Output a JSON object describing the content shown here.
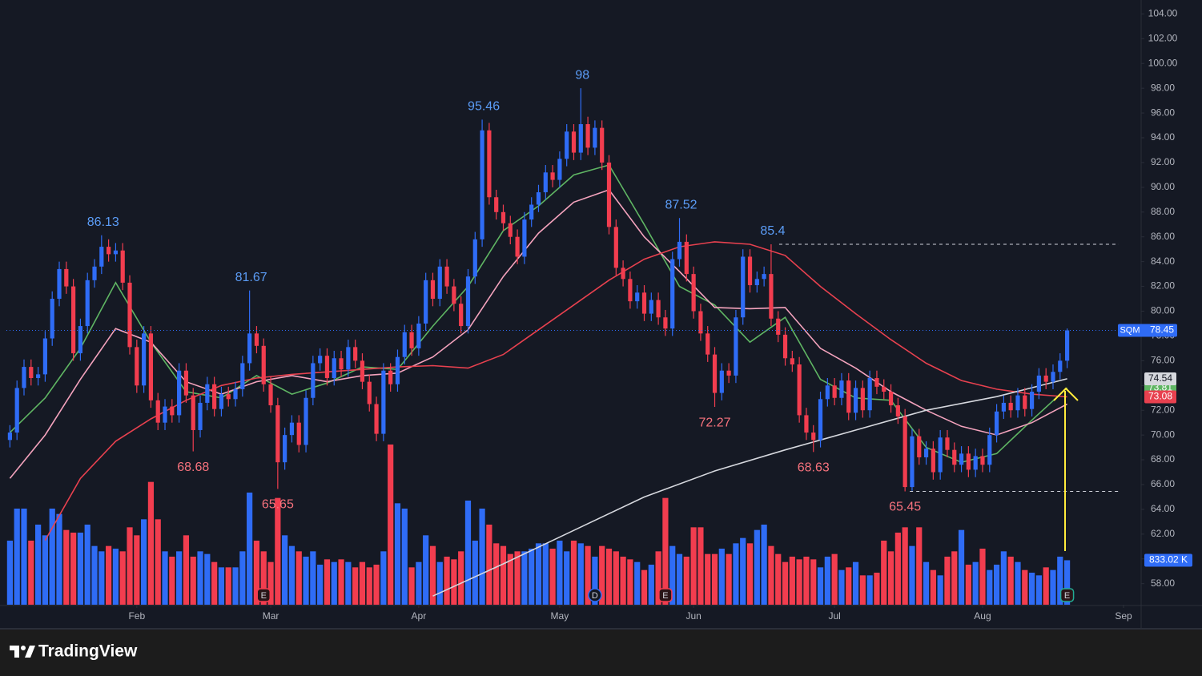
{
  "brand": "TradingView",
  "chart_data": {
    "type": "candlestick",
    "symbol": "SQM",
    "grid": false,
    "up_color": "#2f6cf6",
    "down_color": "#f23d4f",
    "xlim": [
      -0.5,
      160.5
    ],
    "ylim": [
      56.3,
      104.8
    ],
    "volume_lim": [
      0,
      11250
    ],
    "xticks": [
      {
        "value": 18,
        "label": "Feb"
      },
      {
        "value": 37,
        "label": "Mar"
      },
      {
        "value": 58,
        "label": "Apr"
      },
      {
        "value": 78,
        "label": "May"
      },
      {
        "value": 97,
        "label": "Jun"
      },
      {
        "value": 117,
        "label": "Jul"
      },
      {
        "value": 138,
        "label": "Aug"
      },
      {
        "value": 158,
        "label": "Sep"
      }
    ],
    "yticks": [
      {
        "value": 58,
        "label": "58.00"
      },
      {
        "value": 60,
        "label": "60.00"
      },
      {
        "value": 62,
        "label": "62.00"
      },
      {
        "value": 64,
        "label": "64.00"
      },
      {
        "value": 66,
        "label": "66.00"
      },
      {
        "value": 68,
        "label": "68.00"
      },
      {
        "value": 70,
        "label": "70.00"
      },
      {
        "value": 72,
        "label": "72.00"
      },
      {
        "value": 74,
        "label": "74.00"
      },
      {
        "value": 76,
        "label": "76.00"
      },
      {
        "value": 78,
        "label": "78.00"
      },
      {
        "value": 80,
        "label": "80.00"
      },
      {
        "value": 82,
        "label": "82.00"
      },
      {
        "value": 84,
        "label": "84.00"
      },
      {
        "value": 86,
        "label": "86.00"
      },
      {
        "value": 88,
        "label": "88.00"
      },
      {
        "value": 90,
        "label": "90.00"
      },
      {
        "value": 92,
        "label": "92.00"
      },
      {
        "value": 94,
        "label": "94.00"
      },
      {
        "value": 96,
        "label": "96.00"
      },
      {
        "value": 98,
        "label": "98.00"
      },
      {
        "value": 100,
        "label": "100.00"
      },
      {
        "value": 102,
        "label": "102.00"
      },
      {
        "value": 104,
        "label": "104.00"
      }
    ],
    "open": [
      69.6,
      70.2,
      73.8,
      75.5,
      74.6,
      74.9,
      77.8,
      81.0,
      83.4,
      82.0,
      76.6,
      78.8,
      82.5,
      83.6,
      85.2,
      84.6,
      84.9,
      82.3,
      77.1,
      74.0,
      78.2,
      72.8,
      71.0,
      72.3,
      71.6,
      75.2,
      73.2,
      70.4,
      72.6,
      74.1,
      72.1,
      73.3,
      72.9,
      73.7,
      75.8,
      78.2,
      77.2,
      74.1,
      72.4,
      67.8,
      70.0,
      71.0,
      69.2,
      73.0,
      75.8,
      76.4,
      74.6,
      76.2,
      75.3,
      77.1,
      76.0,
      74.3,
      72.5,
      70.1,
      75.2,
      74.1,
      76.3,
      78.3,
      77.0,
      79.0,
      82.5,
      81.0,
      83.6,
      82.0,
      80.6,
      78.8,
      82.8,
      85.8,
      94.6,
      89.2,
      88.0,
      87.1,
      86.0,
      84.4,
      87.4,
      88.6,
      89.6,
      91.2,
      90.6,
      92.3,
      94.5,
      92.8,
      95.1,
      93.2,
      94.8,
      92.0,
      86.8,
      83.5,
      82.6,
      80.8,
      81.5,
      79.8,
      80.9,
      79.5,
      78.6,
      84.2,
      85.6,
      83.0,
      80.0,
      78.2,
      76.5,
      73.4,
      75.2,
      74.8,
      79.5,
      84.4,
      82.1,
      82.6,
      83.0,
      79.4,
      78.1,
      76.2,
      75.7,
      71.6,
      70.2,
      69.6,
      72.9,
      74.0,
      73.0,
      74.4,
      71.8,
      73.8,
      72.0,
      74.6,
      73.9,
      73.5,
      72.4,
      71.5,
      65.8,
      69.9,
      68.2,
      68.9,
      67.0,
      69.8,
      68.8,
      67.6,
      68.5,
      67.2,
      68.3,
      67.6,
      70.0,
      71.9,
      72.6,
      72.0,
      73.2,
      72.1,
      73.5,
      74.8,
      74.3,
      75.1,
      76.0
    ],
    "high": [
      70.8,
      74.4,
      76.1,
      76.1,
      75.5,
      78.4,
      81.6,
      84.0,
      84.0,
      82.6,
      79.4,
      83.1,
      84.2,
      86.13,
      85.8,
      85.5,
      85.5,
      82.9,
      77.7,
      78.8,
      78.8,
      73.4,
      72.9,
      72.9,
      75.8,
      75.8,
      73.8,
      73.2,
      74.7,
      74.7,
      73.9,
      73.9,
      74.3,
      76.4,
      81.67,
      78.8,
      77.8,
      74.7,
      73.0,
      70.6,
      71.6,
      71.6,
      73.6,
      76.4,
      77.0,
      77.0,
      76.8,
      76.8,
      77.7,
      77.7,
      76.6,
      74.9,
      73.1,
      75.8,
      75.8,
      76.9,
      78.9,
      78.9,
      79.6,
      83.1,
      83.1,
      84.2,
      84.2,
      82.6,
      81.2,
      83.4,
      86.4,
      95.46,
      95.2,
      89.8,
      88.6,
      87.7,
      86.6,
      88.0,
      89.2,
      90.2,
      91.8,
      91.8,
      92.9,
      95.1,
      95.1,
      98.0,
      95.7,
      95.4,
      95.4,
      92.6,
      87.4,
      84.1,
      83.2,
      82.1,
      82.1,
      81.5,
      81.5,
      80.1,
      84.8,
      87.52,
      86.2,
      83.6,
      80.6,
      78.8,
      77.1,
      75.8,
      75.8,
      80.1,
      85.0,
      85.0,
      83.2,
      83.6,
      85.4,
      80.0,
      78.7,
      76.8,
      76.3,
      72.2,
      70.8,
      73.5,
      74.6,
      74.6,
      75.0,
      75.0,
      74.4,
      74.4,
      75.2,
      75.2,
      74.5,
      74.1,
      73.0,
      72.1,
      70.5,
      70.5,
      69.5,
      69.5,
      70.4,
      70.4,
      69.4,
      69.1,
      69.1,
      68.9,
      68.9,
      70.6,
      72.5,
      73.2,
      73.2,
      73.8,
      73.8,
      74.1,
      75.4,
      75.4,
      75.7,
      76.6,
      78.6
    ],
    "low": [
      69.0,
      69.6,
      73.2,
      74.0,
      74.0,
      74.3,
      77.2,
      80.4,
      81.4,
      76.0,
      76.0,
      78.2,
      81.9,
      83.0,
      84.0,
      84.0,
      81.7,
      76.5,
      73.4,
      73.4,
      72.2,
      70.4,
      70.4,
      71.0,
      71.0,
      72.6,
      68.68,
      69.8,
      72.0,
      71.5,
      71.5,
      72.3,
      72.3,
      73.1,
      75.2,
      76.6,
      73.5,
      71.8,
      65.65,
      67.2,
      69.4,
      68.6,
      68.6,
      72.4,
      75.2,
      74.0,
      74.0,
      74.7,
      74.7,
      75.4,
      73.7,
      71.9,
      69.5,
      69.5,
      73.5,
      73.5,
      75.7,
      76.4,
      76.4,
      78.4,
      80.4,
      80.4,
      81.4,
      80.0,
      78.2,
      78.2,
      82.2,
      85.2,
      88.6,
      87.4,
      86.5,
      85.4,
      83.8,
      83.8,
      86.8,
      88.0,
      89.0,
      90.0,
      90.0,
      91.7,
      92.2,
      92.2,
      92.6,
      92.6,
      91.4,
      86.2,
      82.9,
      82.0,
      80.2,
      80.2,
      79.2,
      79.2,
      78.9,
      78.0,
      78.0,
      83.6,
      82.4,
      79.4,
      77.6,
      75.9,
      72.27,
      72.8,
      74.2,
      74.2,
      78.9,
      81.5,
      81.5,
      82.0,
      78.8,
      77.5,
      75.6,
      75.1,
      71.0,
      69.6,
      68.63,
      69.0,
      72.3,
      72.4,
      72.4,
      71.2,
      71.2,
      71.4,
      71.4,
      73.3,
      72.9,
      71.8,
      70.9,
      65.45,
      65.5,
      67.6,
      67.6,
      66.4,
      66.4,
      68.2,
      67.0,
      67.0,
      66.6,
      66.6,
      67.0,
      67.0,
      69.4,
      71.3,
      71.4,
      71.4,
      71.5,
      71.5,
      72.9,
      73.7,
      73.7,
      74.5,
      75.4
    ],
    "close": [
      70.2,
      73.8,
      75.5,
      74.6,
      74.9,
      77.8,
      81.0,
      83.4,
      82.0,
      76.6,
      78.8,
      82.5,
      83.6,
      85.2,
      84.6,
      84.9,
      82.3,
      77.1,
      74.0,
      78.2,
      72.8,
      71.0,
      72.3,
      71.6,
      75.2,
      73.2,
      70.4,
      72.6,
      74.1,
      72.1,
      73.3,
      72.9,
      73.7,
      75.8,
      78.2,
      77.2,
      74.1,
      72.4,
      67.8,
      70.0,
      71.0,
      69.2,
      73.0,
      75.8,
      76.4,
      74.6,
      76.2,
      75.3,
      77.1,
      76.0,
      74.3,
      72.5,
      70.1,
      75.2,
      74.1,
      76.3,
      78.3,
      77.0,
      79.0,
      82.5,
      81.0,
      83.6,
      82.0,
      80.6,
      78.8,
      82.8,
      85.8,
      94.6,
      89.2,
      88.0,
      87.1,
      86.0,
      84.4,
      87.4,
      88.6,
      89.6,
      91.2,
      90.6,
      92.3,
      94.5,
      92.8,
      95.1,
      93.2,
      94.8,
      92.0,
      86.8,
      83.5,
      82.6,
      80.8,
      81.5,
      79.8,
      80.9,
      79.5,
      78.6,
      84.2,
      85.6,
      83.0,
      80.0,
      78.2,
      76.5,
      73.4,
      75.2,
      74.8,
      79.5,
      84.4,
      82.1,
      82.6,
      83.0,
      79.4,
      78.1,
      76.2,
      75.7,
      71.6,
      70.2,
      69.6,
      72.9,
      74.0,
      73.0,
      74.4,
      71.8,
      73.8,
      72.0,
      74.6,
      73.9,
      73.5,
      72.4,
      71.5,
      65.8,
      69.9,
      68.2,
      68.9,
      67.0,
      69.8,
      68.8,
      67.6,
      68.5,
      67.2,
      68.3,
      67.6,
      70.0,
      71.9,
      72.6,
      72.0,
      73.2,
      72.1,
      73.5,
      74.8,
      74.3,
      75.1,
      76.0,
      78.45
    ],
    "volume": [
      1200,
      1800,
      1800,
      1200,
      1500,
      1300,
      1800,
      1700,
      1400,
      1350,
      1350,
      1500,
      1100,
      1000,
      1100,
      1050,
      1000,
      1450,
      1300,
      1600,
      2300,
      1600,
      1000,
      900,
      1000,
      1300,
      900,
      1000,
      950,
      800,
      700,
      700,
      700,
      1000,
      2100,
      1200,
      1000,
      800,
      2000,
      1300,
      1100,
      1000,
      900,
      1000,
      750,
      850,
      800,
      850,
      800,
      700,
      800,
      700,
      750,
      1000,
      3000,
      1900,
      1800,
      700,
      800,
      1300,
      1100,
      800,
      900,
      850,
      1000,
      1950,
      1200,
      1800,
      1500,
      1150,
      1100,
      950,
      1000,
      1000,
      1050,
      1150,
      1150,
      1050,
      1200,
      1000,
      1200,
      1150,
      1100,
      900,
      1100,
      1050,
      1000,
      900,
      850,
      800,
      650,
      750,
      1000,
      2000,
      1100,
      950,
      900,
      1450,
      1450,
      950,
      950,
      1050,
      950,
      1150,
      1250,
      1150,
      1400,
      1500,
      1100,
      950,
      800,
      900,
      850,
      900,
      850,
      700,
      900,
      950,
      650,
      700,
      800,
      550,
      550,
      600,
      1200,
      1000,
      1350,
      1450,
      1100,
      1450,
      800,
      650,
      550,
      900,
      1000,
      1400,
      750,
      800,
      1050,
      650,
      750,
      1000,
      900,
      800,
      650,
      600,
      550,
      700,
      650,
      900,
      833.02
    ],
    "last_volume_label": "833.02 K",
    "mas": [
      {
        "color": "#5fb563",
        "last_label": true,
        "x": [
          0,
          5,
          10,
          15,
          20,
          25,
          30,
          35,
          40,
          45,
          50,
          55,
          60,
          65,
          70,
          75,
          80,
          85,
          90,
          95,
          100,
          105,
          110,
          115,
          120,
          125,
          130,
          135,
          140,
          145,
          150
        ],
        "values": [
          70.2,
          73.0,
          77.0,
          82.3,
          77.5,
          73.5,
          73.0,
          74.8,
          73.3,
          74.2,
          75.5,
          75.3,
          78.8,
          82.0,
          86.5,
          88.5,
          91.0,
          91.8,
          87.0,
          82.0,
          80.5,
          77.5,
          79.5,
          74.5,
          73.0,
          72.8,
          69.0,
          67.8,
          68.5,
          71.2,
          73.81
        ]
      },
      {
        "color": "#f4a3bd",
        "last_label": false,
        "x": [
          0,
          5,
          10,
          15,
          20,
          25,
          30,
          35,
          40,
          45,
          50,
          55,
          60,
          65,
          70,
          75,
          80,
          85,
          90,
          95,
          100,
          105,
          110,
          115,
          120,
          125,
          130,
          135,
          140,
          145,
          150
        ],
        "values": [
          66.5,
          70.0,
          74.5,
          78.6,
          77.5,
          74.3,
          73.3,
          74.3,
          74.8,
          74.3,
          74.8,
          75.0,
          76.3,
          78.5,
          82.8,
          86.3,
          88.8,
          89.8,
          86.0,
          83.2,
          80.3,
          80.2,
          80.3,
          77.0,
          75.4,
          73.5,
          72.0,
          70.7,
          70.0,
          71.0,
          72.5
        ]
      },
      {
        "color": "#e8414f",
        "last_label": true,
        "x": [
          5,
          10,
          15,
          20,
          25,
          30,
          35,
          40,
          45,
          50,
          55,
          60,
          65,
          70,
          75,
          80,
          85,
          90,
          95,
          100,
          105,
          110,
          115,
          120,
          125,
          130,
          135,
          140,
          145,
          150
        ],
        "values": [
          61.5,
          66.5,
          69.5,
          71.3,
          72.8,
          74.0,
          74.6,
          74.9,
          75.1,
          75.3,
          75.5,
          75.6,
          75.4,
          76.5,
          78.5,
          80.5,
          82.5,
          84.2,
          85.2,
          85.6,
          85.4,
          84.5,
          82.0,
          79.8,
          77.7,
          75.8,
          74.4,
          73.7,
          73.3,
          73.08
        ]
      },
      {
        "color": "#d6d8de",
        "last_label": true,
        "x": [
          60,
          70,
          80,
          90,
          100,
          110,
          120,
          130,
          140,
          150
        ],
        "values": [
          57.0,
          59.6,
          62.3,
          65.0,
          67.1,
          68.8,
          70.4,
          72.0,
          73.1,
          74.54
        ]
      }
    ],
    "events": [
      {
        "label": "E",
        "x": 36,
        "color": "#f23d4f"
      },
      {
        "label": "D",
        "x": 83,
        "color": "#2f6cf6"
      },
      {
        "label": "E",
        "x": 93,
        "color": "#f23d4f"
      },
      {
        "label": "E",
        "x": 150,
        "color": "#22ab94"
      }
    ]
  }
}
